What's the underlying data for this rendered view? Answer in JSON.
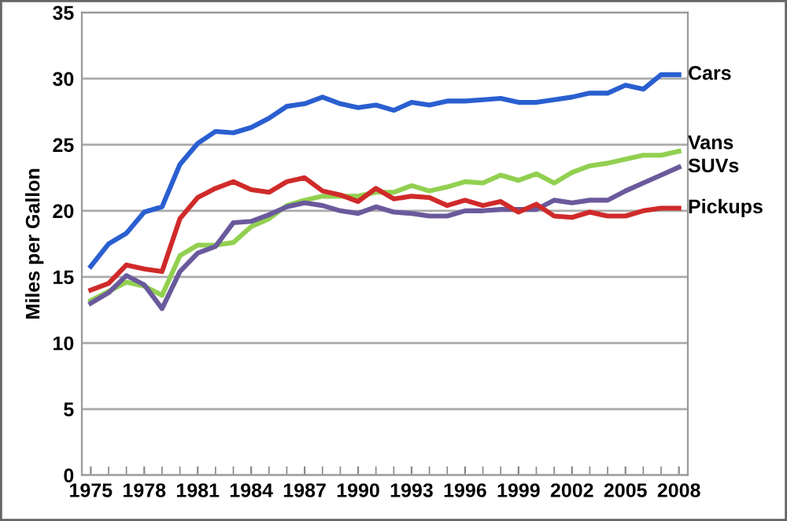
{
  "chart_data": {
    "type": "line",
    "ylabel": "Miles per Gallon",
    "x": [
      1975,
      1976,
      1977,
      1978,
      1979,
      1980,
      1981,
      1982,
      1983,
      1984,
      1985,
      1986,
      1987,
      1988,
      1989,
      1990,
      1991,
      1992,
      1993,
      1994,
      1995,
      1996,
      1997,
      1998,
      1999,
      2000,
      2001,
      2002,
      2003,
      2004,
      2005,
      2006,
      2007,
      2008
    ],
    "series": [
      {
        "name": "Cars",
        "color": "#2a5fd0",
        "values": [
          15.8,
          17.5,
          18.3,
          19.9,
          20.3,
          23.5,
          25.1,
          26.0,
          25.9,
          26.3,
          27.0,
          27.9,
          28.1,
          28.6,
          28.1,
          27.8,
          28.0,
          27.6,
          28.2,
          28.0,
          28.3,
          28.3,
          28.4,
          28.5,
          28.2,
          28.2,
          28.4,
          28.6,
          28.9,
          28.9,
          29.5,
          29.2,
          30.3,
          30.3
        ]
      },
      {
        "name": "Vans",
        "color": "#92d050",
        "values": [
          13.2,
          13.9,
          14.6,
          14.3,
          13.6,
          16.6,
          17.4,
          17.4,
          17.6,
          18.8,
          19.4,
          20.4,
          20.8,
          21.1,
          21.1,
          21.1,
          21.4,
          21.4,
          21.9,
          21.5,
          21.8,
          22.2,
          22.1,
          22.7,
          22.3,
          22.8,
          22.1,
          22.9,
          23.4,
          23.6,
          23.9,
          24.2,
          24.2,
          24.5
        ]
      },
      {
        "name": "SUVs",
        "color": "#6a5a9c",
        "values": [
          13.0,
          13.8,
          15.1,
          14.4,
          12.6,
          15.4,
          16.8,
          17.3,
          19.1,
          19.2,
          19.7,
          20.3,
          20.6,
          20.4,
          20.0,
          19.8,
          20.3,
          19.9,
          19.8,
          19.6,
          19.6,
          20.0,
          20.0,
          20.1,
          20.1,
          20.1,
          20.8,
          20.6,
          20.8,
          20.8,
          21.5,
          22.1,
          22.7,
          23.3
        ]
      },
      {
        "name": "Pickups",
        "color": "#d02a2a",
        "values": [
          14.0,
          14.5,
          15.9,
          15.6,
          15.4,
          19.4,
          21.0,
          21.7,
          22.2,
          21.6,
          21.4,
          22.2,
          22.5,
          21.5,
          21.2,
          20.7,
          21.7,
          20.9,
          21.1,
          21.0,
          20.4,
          20.8,
          20.4,
          20.7,
          19.9,
          20.5,
          19.6,
          19.5,
          19.9,
          19.6,
          19.6,
          20.0,
          20.2,
          20.2
        ]
      }
    ],
    "xlim": [
      1974.5,
      2008.5
    ],
    "xticks": [
      1975,
      1978,
      1981,
      1984,
      1987,
      1990,
      1993,
      1996,
      1999,
      2002,
      2005,
      2008
    ],
    "ylim": [
      0,
      35
    ],
    "yticks": [
      0,
      5,
      10,
      15,
      20,
      25,
      30,
      35
    ],
    "grid": "y",
    "legend": false,
    "marker": "none",
    "line_style": "solid"
  }
}
